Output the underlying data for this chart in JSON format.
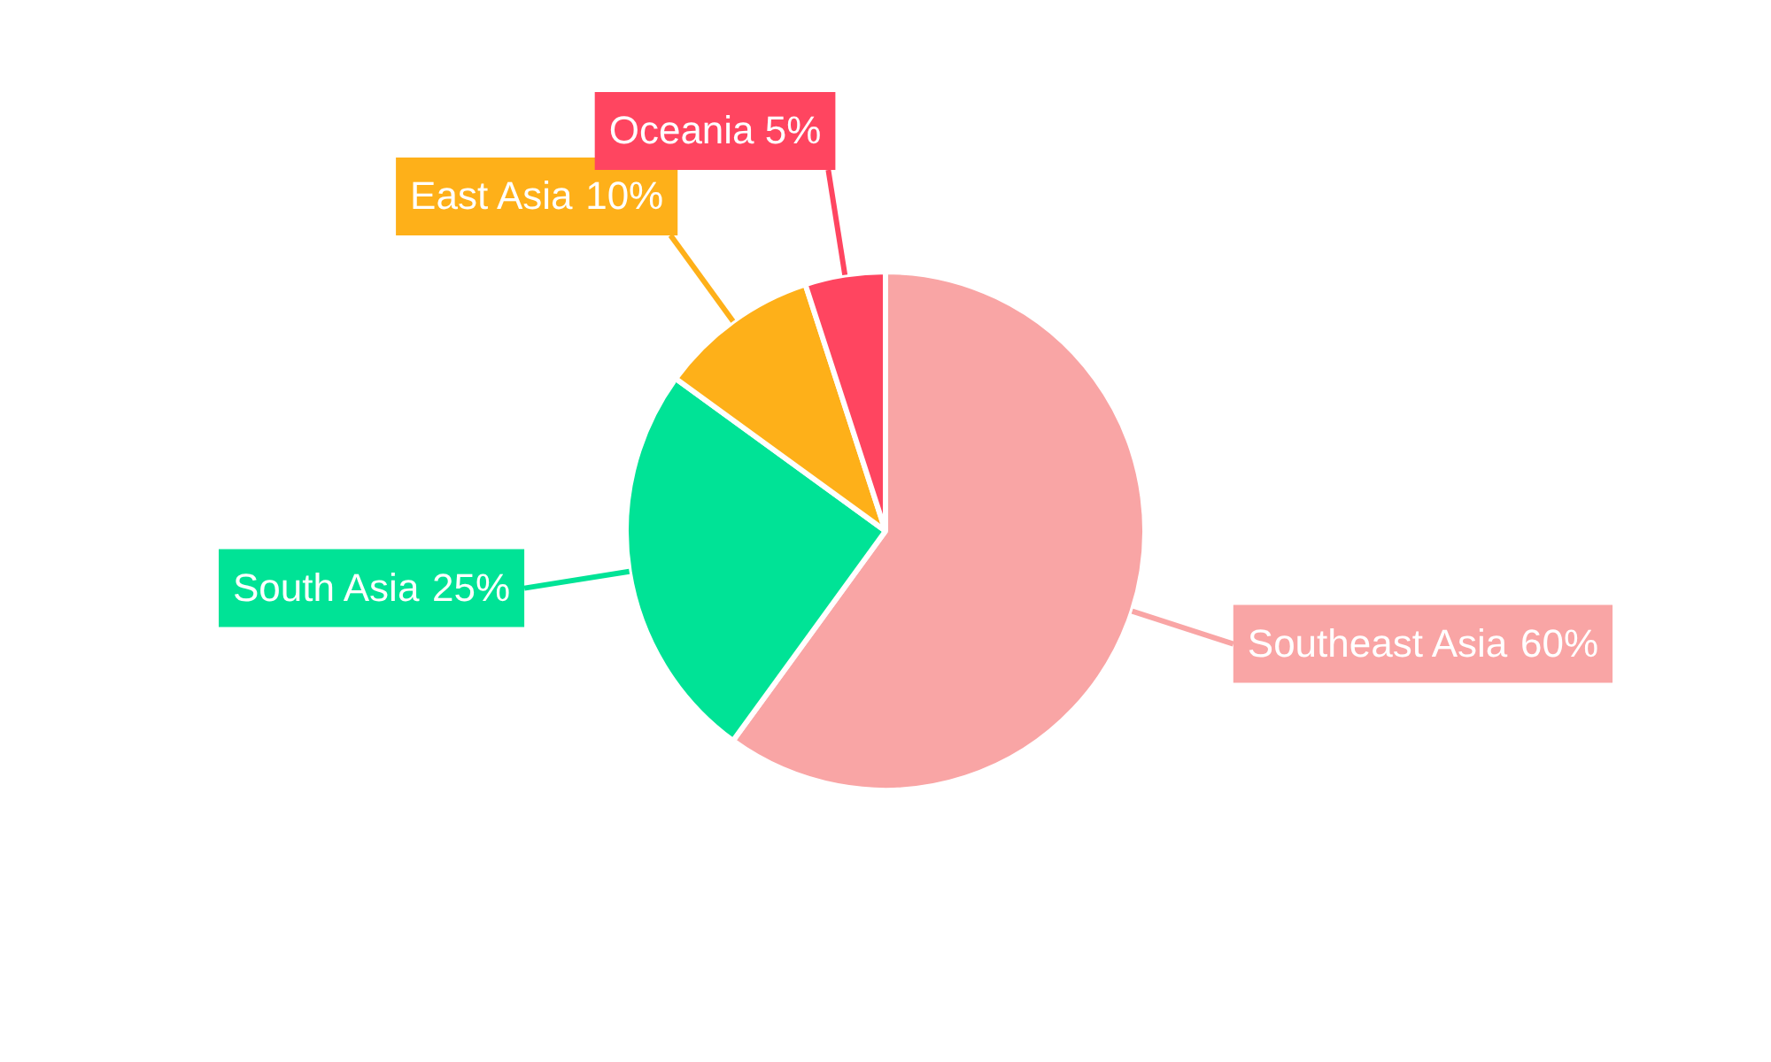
{
  "chart_data": {
    "type": "pie",
    "categories": [
      "Southeast Asia",
      "South Asia",
      "East Asia",
      "Oceania"
    ],
    "values": [
      60,
      25,
      10,
      5
    ],
    "colors": [
      "#f9a5a5",
      "#00e396",
      "#feb019",
      "#ff4560"
    ],
    "value_labels": [
      "60%",
      "25%",
      "10%",
      "5%"
    ],
    "legend": false
  }
}
